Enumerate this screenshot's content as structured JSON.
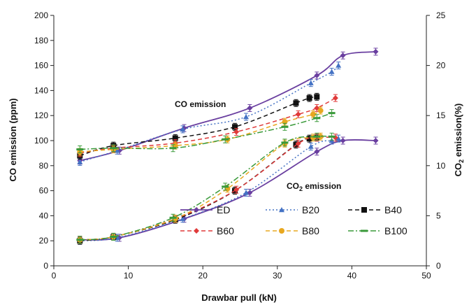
{
  "chart_data": {
    "type": "line",
    "xlabel": "Drawbar pull (kN)",
    "ylabel": "CO emission (ppm)",
    "ylabel_right_prefix": "CO",
    "ylabel_right_sub": "2",
    "ylabel_right_suffix": " emission(%)",
    "xlim": [
      0,
      50
    ],
    "ylim": [
      0,
      200
    ],
    "ylim_right": [
      0,
      25
    ],
    "xticks": [
      "0",
      "10",
      "20",
      "30",
      "40",
      "50"
    ],
    "yticks": [
      "0",
      "20",
      "40",
      "60",
      "80",
      "100",
      "120",
      "140",
      "160",
      "180",
      "200"
    ],
    "yticks_right": [
      "0",
      "5",
      "10",
      "15",
      "20",
      "25"
    ],
    "grid": false,
    "legend_position": "bottom-right",
    "annotations": [
      {
        "id": "co",
        "text": "CO emission"
      },
      {
        "id": "co2",
        "text_prefix": "CO",
        "text_sub": "2",
        "text_suffix": " emission"
      }
    ],
    "series": [
      {
        "name": "ED",
        "color": "#6a3fa0",
        "dash": "solid",
        "marker": "diamond",
        "co_x": [
          3.5,
          8.8,
          17.5,
          26.3,
          35.3,
          38.8,
          43.2
        ],
        "co_y": [
          84,
          92,
          110,
          126,
          152,
          168,
          171
        ],
        "co2_x": [
          3.5,
          8.8,
          17.5,
          26.3,
          35.3,
          38.8,
          43.2
        ],
        "co2_y": [
          2.6,
          2.8,
          4.7,
          7.3,
          11.4,
          12.5,
          12.5
        ]
      },
      {
        "name": "B20",
        "color": "#4472c4",
        "dash": "dot",
        "marker": "triangle",
        "co_x": [
          3.5,
          8.5,
          17.3,
          25.8,
          34.5,
          37.3,
          38.2
        ],
        "co_y": [
          83,
          92,
          109,
          119,
          146,
          155,
          160
        ],
        "co2_x": [
          3.5,
          8.5,
          17.3,
          25.8,
          34.5,
          37.3,
          38.2
        ],
        "co2_y": [
          2.5,
          2.8,
          4.7,
          7.3,
          11.9,
          12.5,
          12.7
        ]
      },
      {
        "name": "B40",
        "color": "#111111",
        "dash": "dash",
        "marker": "square",
        "co_x": [
          3.5,
          8.0,
          16.3,
          24.3,
          32.5,
          34.3,
          35.3
        ],
        "co_y": [
          88,
          96,
          102,
          111,
          130,
          134,
          135
        ],
        "co2_x": [
          3.5,
          8.0,
          16.3,
          24.3,
          32.5,
          34.3,
          35.3
        ],
        "co2_y": [
          2.5,
          2.9,
          4.6,
          7.5,
          12.1,
          12.7,
          12.8
        ]
      },
      {
        "name": "B60",
        "color": "#e03a3a",
        "dash": "dash",
        "marker": "diamond",
        "co_x": [
          3.5,
          8.0,
          16.3,
          24.5,
          32.8,
          35.3,
          37.8
        ],
        "co_y": [
          90,
          94,
          98,
          107,
          121,
          126,
          134
        ],
        "co2_x": [
          3.5,
          8.0,
          16.3,
          24.5,
          32.8,
          35.3,
          37.8
        ],
        "co2_y": [
          2.6,
          2.9,
          4.7,
          7.6,
          12.2,
          12.8,
          12.8
        ]
      },
      {
        "name": "B80",
        "color": "#e8a820",
        "dash": "dash",
        "marker": "circle",
        "co_x": [
          3.5,
          8.0,
          16.3,
          23.3,
          31.0,
          34.8,
          35.8
        ],
        "co_y": [
          91,
          93,
          96,
          101,
          115,
          121,
          124
        ],
        "co2_x": [
          3.5,
          8.0,
          16.3,
          23.3,
          31.0,
          34.8,
          35.8
        ],
        "co2_y": [
          2.6,
          2.9,
          4.7,
          7.7,
          12.2,
          12.8,
          12.9
        ]
      },
      {
        "name": "B100",
        "color": "#3a9a3a",
        "dash": "dashdot",
        "marker": "dash",
        "co_x": [
          3.5,
          8.0,
          16.0,
          23.0,
          31.0,
          35.3,
          37.3
        ],
        "co_y": [
          93,
          94,
          94,
          101,
          111,
          118,
          122
        ],
        "co2_x": [
          3.5,
          8.0,
          16.0,
          23.0,
          31.0,
          35.3,
          37.3
        ],
        "co2_y": [
          2.6,
          2.9,
          4.8,
          7.9,
          12.3,
          12.9,
          12.9
        ]
      }
    ]
  }
}
